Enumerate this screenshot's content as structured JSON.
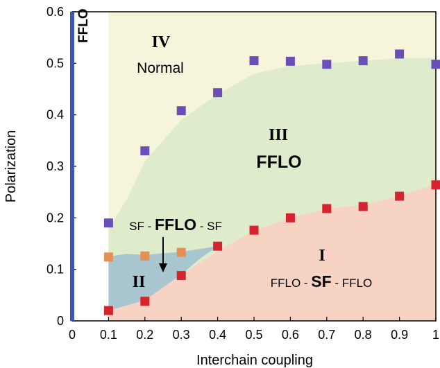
{
  "chart_data": {
    "type": "scatter",
    "xlabel": "Interchain coupling",
    "ylabel": "Polarization",
    "xlim": [
      0,
      1
    ],
    "ylim": [
      0,
      0.6
    ],
    "x_ticks": [
      "0",
      "0.1",
      "0.2",
      "0.3",
      "0.4",
      "0.5",
      "0.6",
      "0.7",
      "0.8",
      "0.9",
      "1"
    ],
    "y_ticks": [
      "0",
      "0.1",
      "0.2",
      "0.3",
      "0.4",
      "0.5",
      "0.6"
    ],
    "colors": {
      "upper": "#6b4fb8",
      "lower": "#d6242e",
      "orange": "#e39056",
      "region_IV": "#f7f4dc",
      "region_III": "#deeccc",
      "region_II": "#a7c6cf",
      "region_I": "#f6d3c2",
      "fflo_bar": "#3d55b5"
    },
    "series": [
      {
        "color_key": "upper",
        "points": [
          [
            0.1,
            0.19
          ],
          [
            0.2,
            0.33
          ],
          [
            0.3,
            0.408
          ],
          [
            0.4,
            0.443
          ],
          [
            0.5,
            0.505
          ],
          [
            0.6,
            0.504
          ],
          [
            0.7,
            0.498
          ],
          [
            0.8,
            0.505
          ],
          [
            0.9,
            0.518
          ],
          [
            1.0,
            0.498
          ]
        ]
      },
      {
        "color_key": "lower",
        "points": [
          [
            0.1,
            0.02
          ],
          [
            0.2,
            0.038
          ],
          [
            0.3,
            0.088
          ],
          [
            0.4,
            0.145
          ],
          [
            0.5,
            0.176
          ],
          [
            0.6,
            0.2
          ],
          [
            0.7,
            0.218
          ],
          [
            0.8,
            0.222
          ],
          [
            0.9,
            0.242
          ],
          [
            1.0,
            0.264
          ]
        ]
      },
      {
        "color_key": "orange",
        "points": [
          [
            0.1,
            0.124
          ],
          [
            0.2,
            0.126
          ],
          [
            0.3,
            0.133
          ]
        ]
      }
    ],
    "regions": [
      {
        "numeral": "IV",
        "label": "Normal"
      },
      {
        "numeral": "III",
        "label": "FFLO"
      },
      {
        "numeral": "II",
        "label": ""
      },
      {
        "numeral": "I",
        "label_parts": [
          "FFLO - ",
          "SF",
          " - FFLO"
        ]
      }
    ],
    "annotations": {
      "fflo_bar_label": "FFLO",
      "arrow_label_parts": [
        "SF - ",
        "FFLO",
        " - SF"
      ]
    }
  }
}
